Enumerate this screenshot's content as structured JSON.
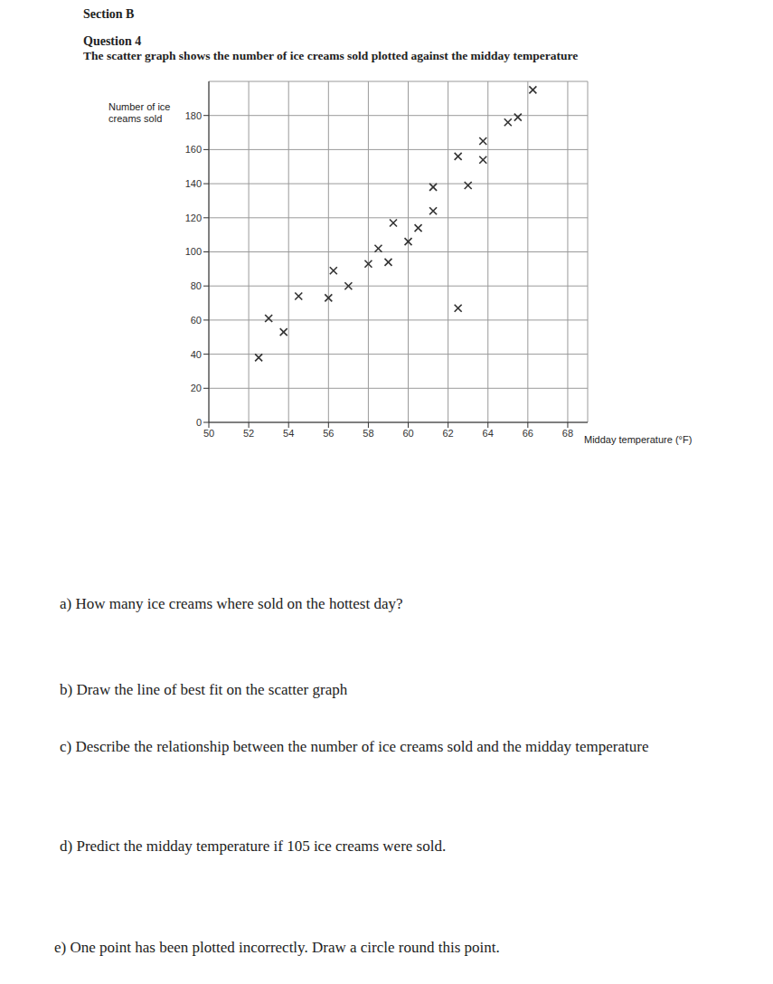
{
  "header": {
    "section": "Section B",
    "question": "Question 4",
    "description": "The scatter graph shows the number of ice creams sold plotted against the midday temperature"
  },
  "chart_data": {
    "type": "scatter",
    "x_label": "Midday temperature (°F)",
    "y_label": "Number of ice creams sold",
    "x": [
      52.5,
      53,
      53.75,
      54.5,
      56,
      56.25,
      57,
      58,
      58.5,
      59,
      59.25,
      60,
      60.5,
      61.25,
      61.25,
      62.5,
      62.5,
      63,
      63.75,
      63.75,
      65,
      65.5,
      66.25
    ],
    "values": [
      38,
      61,
      53,
      74,
      73,
      89,
      80,
      93,
      102,
      94,
      117,
      106,
      114,
      124,
      138,
      67,
      156,
      139,
      165,
      154,
      176,
      179,
      195
    ],
    "color": "#333333",
    "marker": "x",
    "xlim": [
      50,
      69
    ],
    "xticks": [
      50,
      52,
      54,
      56,
      58,
      60,
      62,
      64,
      66,
      68
    ],
    "ylim": [
      0,
      200
    ],
    "yticks": [
      0,
      20,
      40,
      60,
      80,
      100,
      120,
      140,
      160,
      180
    ],
    "grid": true
  },
  "questions": [
    {
      "label": "a)",
      "text": "How many ice creams where sold on the hottest day?"
    },
    {
      "label": "b)",
      "text": "Draw the line of best fit on the scatter graph"
    },
    {
      "label": "c)",
      "text": "Describe the relationship between the number of ice creams sold and the midday temperature"
    },
    {
      "label": "d)",
      "text": "Predict the midday temperature if 105 ice creams were sold."
    },
    {
      "label": "e)",
      "text": "One point has been plotted incorrectly. Draw a circle round this point."
    }
  ]
}
